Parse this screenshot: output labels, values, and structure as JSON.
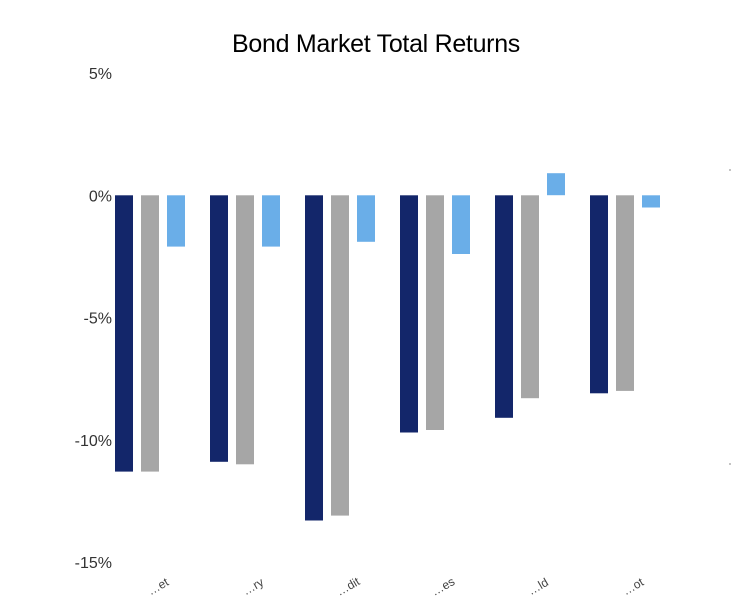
{
  "chart_data": {
    "type": "bar",
    "title": "Bond Market Total Returns",
    "xlabel": "",
    "ylabel": "",
    "ylim": [
      -15,
      5
    ],
    "yticks": [
      5,
      0,
      -5,
      -10,
      -15
    ],
    "ytick_labels": [
      "5%",
      "0%",
      "-5%",
      "-10%",
      "-15%"
    ],
    "categories": [
      "…et",
      "…ry",
      "…dit",
      "…es",
      "…ld",
      "…ot"
    ],
    "series": [
      {
        "color": "#13266a",
        "values": [
          -11.3,
          -10.9,
          -13.3,
          -9.7,
          -9.1,
          -8.1
        ]
      },
      {
        "color": "#a6a6a6",
        "values": [
          -11.3,
          -11.0,
          -13.1,
          -9.6,
          -8.3,
          -8.0
        ]
      },
      {
        "color": "#6aaee8",
        "values": [
          -2.1,
          -2.1,
          -1.9,
          -2.4,
          0.9,
          -0.5
        ]
      }
    ],
    "grid": false,
    "legend": "none"
  }
}
